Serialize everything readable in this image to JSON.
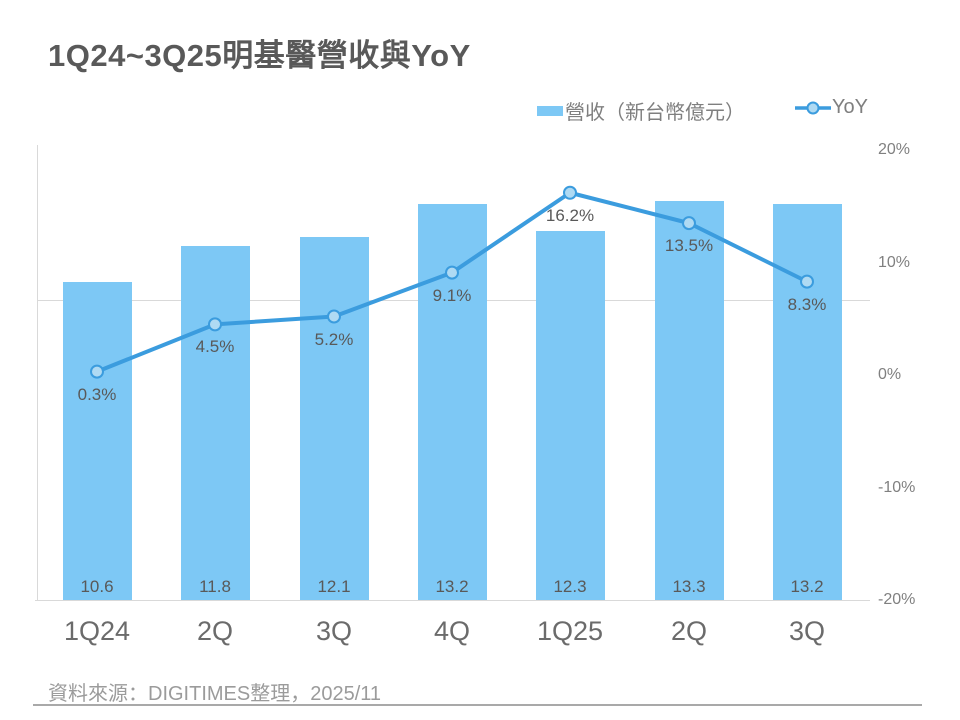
{
  "title": "1Q24~3Q25明基醫營收與YoY",
  "legend": {
    "bar_label": "營收（新台幣億元）",
    "line_label": "YoY"
  },
  "footer": {
    "source": "資料來源：DIGITIMES整理，2025/11"
  },
  "colors": {
    "bar": "#7dc8f5",
    "line": "#3b9cde",
    "marker_fill": "#afdaf3",
    "grid": "#d9d9d9",
    "label_text": "#595959"
  },
  "chart_data": {
    "type": "bar+line combo",
    "title": "1Q24~3Q25明基醫營收與YoY",
    "categories": [
      "1Q24",
      "2Q",
      "3Q",
      "4Q",
      "1Q25",
      "2Q",
      "3Q"
    ],
    "series": [
      {
        "name": "營收（新台幣億元）",
        "type": "bar",
        "values": [
          10.6,
          11.8,
          12.1,
          13.2,
          12.3,
          13.3,
          13.2
        ],
        "data_labels": [
          "10.6",
          "11.8",
          "12.1",
          "13.2",
          "12.3",
          "13.3",
          "13.2"
        ]
      },
      {
        "name": "YoY",
        "type": "line",
        "values": [
          0.3,
          4.5,
          5.2,
          9.1,
          16.2,
          13.5,
          8.3
        ],
        "data_labels": [
          "0.3%",
          "4.5%",
          "5.2%",
          "9.1%",
          "16.2%",
          "13.5%",
          "8.3%"
        ]
      }
    ],
    "left_axis": {
      "min": 0,
      "max": 15,
      "labels_visible": false
    },
    "right_axis": {
      "min": -20,
      "max": 20,
      "ticks": [
        "20%",
        "10%",
        "0%",
        "-10%",
        "-20%"
      ],
      "tick_values": [
        20,
        10,
        0,
        -10,
        -20
      ]
    },
    "grid": "single horizontal gridline at left-axis value 10",
    "legend_position": "top-right"
  }
}
